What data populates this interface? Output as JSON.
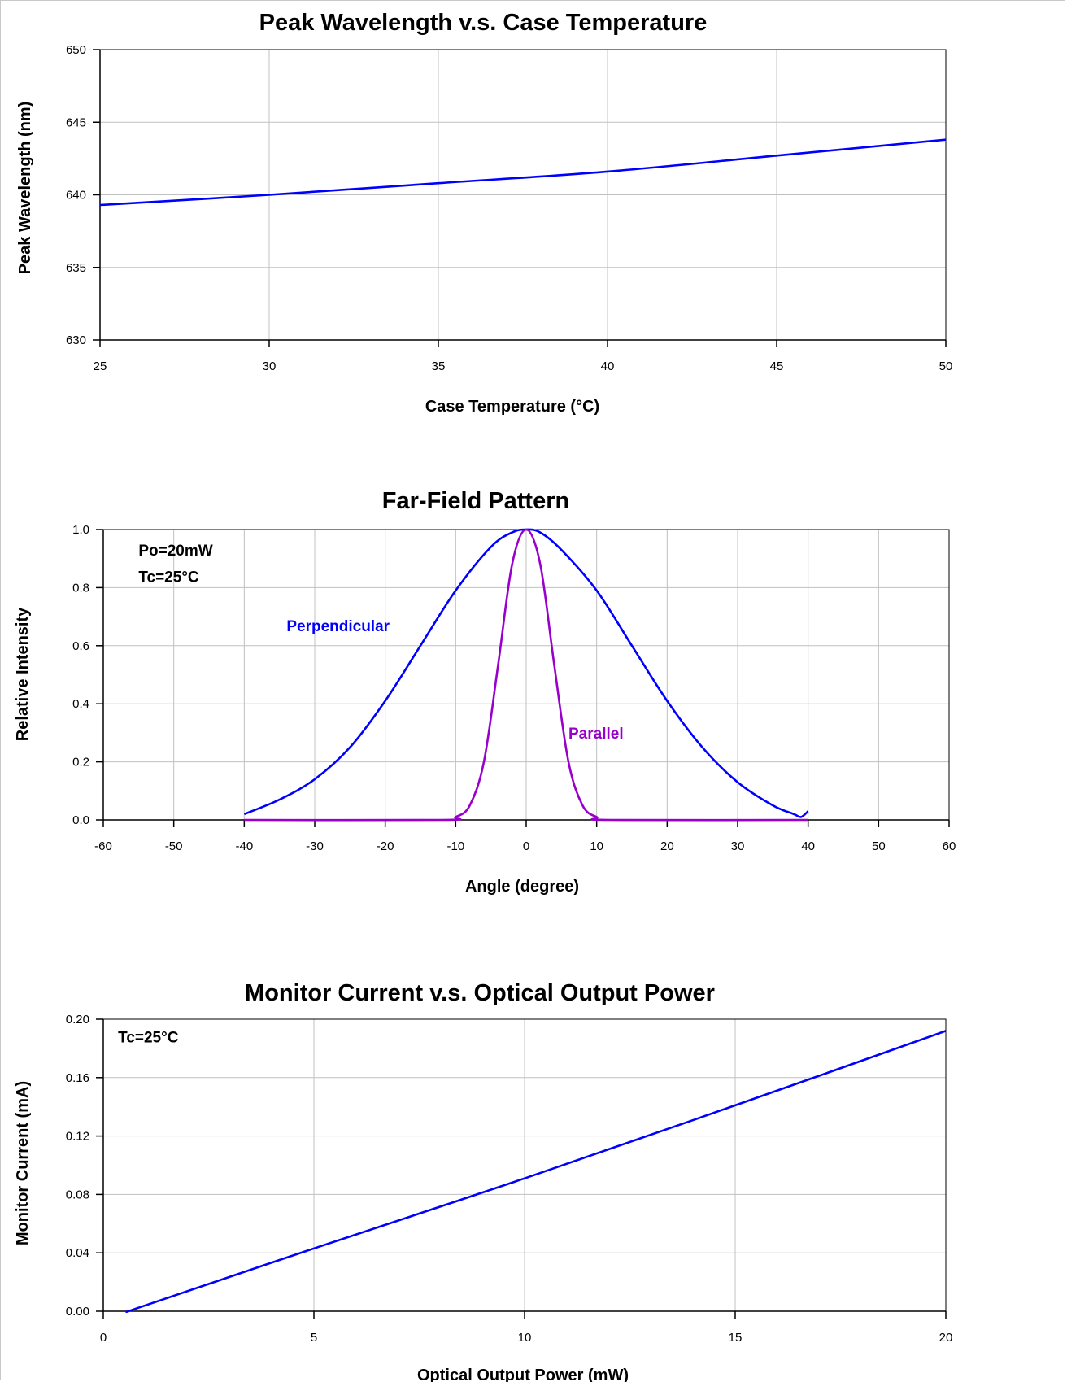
{
  "chart_data": [
    {
      "id": "wavelength",
      "type": "line",
      "title": "Peak Wavelength v.s. Case Temperature",
      "xlabel": "Case Temperature (°C)",
      "ylabel": "Peak Wavelength (nm)",
      "xlim": [
        25,
        50
      ],
      "ylim": [
        630,
        650
      ],
      "xticks": [
        25,
        30,
        35,
        40,
        45,
        50
      ],
      "xtick_labels": [
        "25",
        "30",
        "35",
        "40",
        "45",
        "50"
      ],
      "yticks": [
        630,
        635,
        640,
        645,
        650
      ],
      "ytick_labels": [
        "630",
        "635",
        "640",
        "645",
        "650"
      ],
      "grid": true,
      "annotations": [],
      "series": [
        {
          "color": "#0000ff",
          "x": [
            25,
            30,
            35,
            40,
            45,
            50
          ],
          "y": [
            639.3,
            640.0,
            640.8,
            641.6,
            642.7,
            643.8
          ]
        }
      ]
    },
    {
      "id": "farfield",
      "type": "line",
      "title": "Far-Field Pattern",
      "xlabel": "Angle (degree)",
      "ylabel": "Relative Intensity",
      "xlim": [
        -60,
        60
      ],
      "ylim": [
        0,
        1
      ],
      "xticks": [
        -60,
        -50,
        -40,
        -30,
        -20,
        -10,
        0,
        10,
        20,
        30,
        40,
        50,
        60
      ],
      "xtick_labels": [
        "-60",
        "-50",
        "-40",
        "-30",
        "-20",
        "-10",
        "0",
        "10",
        "20",
        "30",
        "40",
        "50",
        "60"
      ],
      "yticks": [
        0,
        0.2,
        0.4,
        0.6,
        0.8,
        1.0
      ],
      "ytick_labels": [
        "0.0",
        "0.2",
        "0.4",
        "0.6",
        "0.8",
        "1.0"
      ],
      "grid": true,
      "annotations": [
        {
          "text": "Po=20mW",
          "x": -55,
          "y": 0.91,
          "color": "#000000"
        },
        {
          "text": "Tc=25°C",
          "x": -55,
          "y": 0.82,
          "color": "#000000"
        },
        {
          "text": "Perpendicular",
          "x": -34,
          "y": 0.65,
          "color": "#0000ff"
        },
        {
          "text": "Parallel",
          "x": 6,
          "y": 0.28,
          "color": "#9900cc"
        }
      ],
      "series": [
        {
          "name": "Perpendicular",
          "color": "#0000ff",
          "x": [
            -40,
            -35,
            -30,
            -25,
            -20,
            -15,
            -10,
            -5,
            -2,
            0,
            2,
            5,
            10,
            15,
            20,
            25,
            30,
            35,
            38,
            39,
            40
          ],
          "y": [
            0.02,
            0.07,
            0.14,
            0.25,
            0.41,
            0.6,
            0.79,
            0.94,
            0.99,
            1.0,
            0.99,
            0.93,
            0.79,
            0.6,
            0.41,
            0.25,
            0.13,
            0.05,
            0.02,
            0.01,
            0.03
          ]
        },
        {
          "name": "Parallel",
          "color": "#9900cc",
          "x": [
            -40,
            -12,
            -10,
            -8,
            -6,
            -4,
            -2,
            0,
            2,
            4,
            6,
            8,
            10,
            12,
            40
          ],
          "y": [
            0.0,
            0.0,
            0.01,
            0.05,
            0.2,
            0.53,
            0.88,
            1.0,
            0.88,
            0.53,
            0.2,
            0.05,
            0.01,
            0.0,
            0.0
          ]
        }
      ]
    },
    {
      "id": "monitor",
      "type": "line",
      "title": "Monitor Current v.s. Optical Output Power",
      "xlabel": "Optical Output Power (mW)",
      "ylabel": "Monitor Current (mA)",
      "xlim": [
        0,
        20
      ],
      "ylim": [
        0,
        0.2
      ],
      "xticks": [
        0,
        5,
        10,
        15,
        20
      ],
      "xtick_labels": [
        "0",
        "5",
        "10",
        "15",
        "20"
      ],
      "yticks": [
        0,
        0.04,
        0.08,
        0.12,
        0.16,
        0.2
      ],
      "ytick_labels": [
        "0.00",
        "0.04",
        "0.08",
        "0.12",
        "0.16",
        "0.20"
      ],
      "grid": true,
      "annotations": [
        {
          "text": "Tc=25°C",
          "x": 0.35,
          "y": 0.184,
          "color": "#000000"
        }
      ],
      "series": [
        {
          "color": "#0000ff",
          "x": [
            0.6,
            1,
            5,
            10,
            15,
            20
          ],
          "y": [
            0.0,
            0.004,
            0.043,
            0.091,
            0.141,
            0.192
          ]
        }
      ]
    }
  ]
}
